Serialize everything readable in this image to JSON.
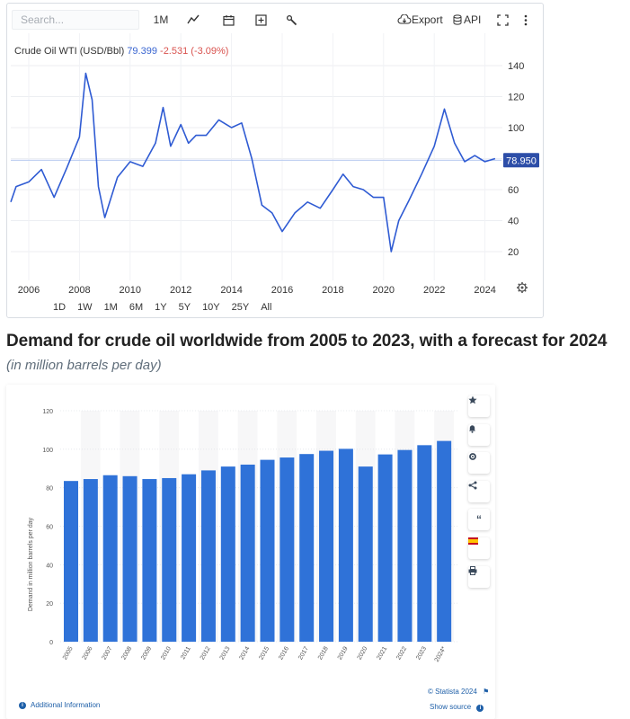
{
  "toolbar": {
    "search_placeholder": "Search...",
    "interval": "1M",
    "export_label": "Export",
    "api_label": "API",
    "icons": [
      "line-chart-icon",
      "calendar-icon",
      "add-indicator-icon",
      "wrench-icon",
      "cloud-download-icon",
      "database-icon",
      "fullscreen-icon",
      "more-vertical-icon"
    ]
  },
  "price_chart": {
    "instrument": "Crude Oil WTI (USD/Bbl)",
    "last_price": "79.399",
    "change": "-2.531 (-3.09%)",
    "current_marker": "78.950",
    "y_ticks": [
      "140",
      "120",
      "100",
      "80",
      "60",
      "40",
      "20"
    ],
    "x_ticks": [
      "2006",
      "2008",
      "2010",
      "2012",
      "2014",
      "2016",
      "2018",
      "2020",
      "2022",
      "2024"
    ],
    "ranges": [
      "1D",
      "1W",
      "1M",
      "6M",
      "1Y",
      "5Y",
      "10Y",
      "25Y",
      "All"
    ],
    "line_color": "#2f5bd3"
  },
  "heading": "Demand for crude oil worldwide from 2005 to 2023, with a forecast for 2024",
  "subheading": "(in million barrels per day)",
  "statista": {
    "copyright": "© Statista 2024",
    "show_source": "Show source",
    "additional_info": "Additional Information",
    "side_icons": [
      "star-icon",
      "bell-icon",
      "gear-icon",
      "share-icon",
      "quote-icon",
      "flag-icon",
      "print-icon"
    ]
  },
  "chart_data": [
    {
      "type": "line",
      "title": "Crude Oil WTI (USD/Bbl)",
      "xlabel": "",
      "ylabel": "",
      "ylim": [
        0,
        150
      ],
      "x": [
        2005.0,
        2005.5,
        2006.0,
        2006.5,
        2007.0,
        2007.5,
        2008.0,
        2008.25,
        2008.5,
        2008.75,
        2009.0,
        2009.5,
        2010.0,
        2010.5,
        2011.0,
        2011.3,
        2011.6,
        2012.0,
        2012.3,
        2012.6,
        2013.0,
        2013.5,
        2014.0,
        2014.4,
        2014.8,
        2015.2,
        2015.6,
        2016.0,
        2016.5,
        2017.0,
        2017.5,
        2018.0,
        2018.4,
        2018.8,
        2019.2,
        2019.6,
        2020.0,
        2020.3,
        2020.6,
        2021.0,
        2021.5,
        2022.0,
        2022.4,
        2022.8,
        2023.2,
        2023.6,
        2024.0,
        2024.4
      ],
      "y": [
        52,
        62,
        65,
        73,
        55,
        74,
        94,
        135,
        118,
        62,
        42,
        68,
        78,
        75,
        90,
        113,
        88,
        102,
        90,
        95,
        95,
        105,
        100,
        103,
        80,
        50,
        45,
        33,
        45,
        52,
        48,
        60,
        70,
        62,
        60,
        55,
        55,
        20,
        40,
        53,
        70,
        88,
        112,
        90,
        78,
        82,
        78,
        80
      ],
      "series": [
        {
          "name": "Crude Oil WTI",
          "values": [
            52,
            62,
            65,
            73,
            55,
            74,
            94,
            135,
            118,
            62,
            42,
            68,
            78,
            75,
            90,
            113,
            88,
            102,
            90,
            95,
            95,
            105,
            100,
            103,
            80,
            50,
            45,
            33,
            45,
            52,
            48,
            60,
            70,
            62,
            60,
            55,
            55,
            20,
            40,
            53,
            70,
            88,
            112,
            90,
            78,
            82,
            78,
            80
          ]
        }
      ]
    },
    {
      "type": "bar",
      "title": "Demand for crude oil worldwide from 2005 to 2023, with a forecast for 2024",
      "xlabel": "",
      "ylabel": "Demand in million barrels per day",
      "ylim": [
        0,
        120
      ],
      "y_ticks": [
        "0",
        "20",
        "40",
        "60",
        "80",
        "100",
        "120"
      ],
      "categories": [
        "2005",
        "2006",
        "2007",
        "2008",
        "2009",
        "2010",
        "2011",
        "2012",
        "2013",
        "2014",
        "2015",
        "2016",
        "2017",
        "2018",
        "2019",
        "2020",
        "2021",
        "2022",
        "2023",
        "2024*"
      ],
      "values": [
        83.5,
        84.5,
        86.5,
        86,
        84.5,
        85,
        87,
        89,
        91,
        92,
        94.5,
        95.7,
        97.5,
        99.2,
        100.2,
        91,
        97.3,
        99.6,
        102.1,
        104.3
      ],
      "bar_color": "#2f72d8"
    }
  ]
}
